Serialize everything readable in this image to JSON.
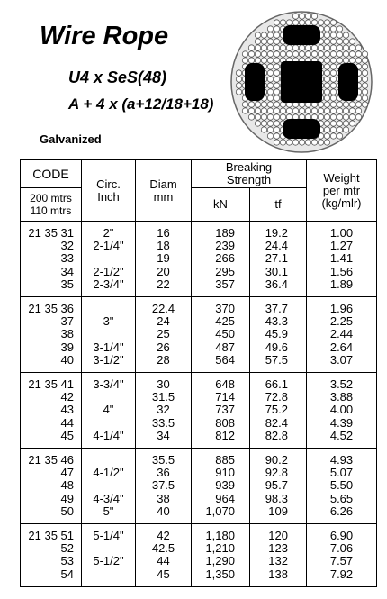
{
  "header": {
    "title": "Wire Rope",
    "subtitle": "U4 x SeS(48)",
    "construction": "A + 4 x (a+12/18+18)",
    "finish": "Galvanized"
  },
  "table": {
    "columns": {
      "code": "CODE",
      "code_lengths": [
        "200 mtrs",
        "110 mtrs"
      ],
      "circ": [
        "Circ.",
        "Inch"
      ],
      "diam": [
        "Diam",
        "mm"
      ],
      "strength": [
        "Breaking",
        "Strength"
      ],
      "kn": "kN",
      "tf": "tf",
      "weight": [
        "Weight",
        "per mtr",
        "(kg/mlr)"
      ]
    },
    "groups": [
      [
        [
          "21 35 31",
          "2\"",
          "16",
          "189",
          "19.2",
          "1.00"
        ],
        [
          "32",
          "2-1/4\"",
          "18",
          "239",
          "24.4",
          "1.27"
        ],
        [
          "33",
          null,
          "19",
          "266",
          "27.1",
          "1.41"
        ],
        [
          "34",
          "2-1/2\"",
          "20",
          "295",
          "30.1",
          "1.56"
        ],
        [
          "35",
          "2-3/4\"",
          "22",
          "357",
          "36.4",
          "1.89"
        ]
      ],
      [
        [
          "21 35 36",
          null,
          "22.4",
          "370",
          "37.7",
          "1.96"
        ],
        [
          "37",
          "3\"",
          "24",
          "425",
          "43.3",
          "2.25"
        ],
        [
          "38",
          null,
          "25",
          "450",
          "45.9",
          "2.44"
        ],
        [
          "39",
          "3-1/4\"",
          "26",
          "487",
          "49.6",
          "2.64"
        ],
        [
          "40",
          "3-1/2\"",
          "28",
          "564",
          "57.5",
          "3.07"
        ]
      ],
      [
        [
          "21 35 41",
          "3-3/4\"",
          "30",
          "648",
          "66.1",
          "3.52"
        ],
        [
          "42",
          null,
          "31.5",
          "714",
          "72.8",
          "3.88"
        ],
        [
          "43",
          "4\"",
          "32",
          "737",
          "75.2",
          "4.00"
        ],
        [
          "44",
          null,
          "33.5",
          "808",
          "82.4",
          "4.39"
        ],
        [
          "45",
          "4-1/4\"",
          "34",
          "812",
          "82.8",
          "4.52"
        ]
      ],
      [
        [
          "21 35 46",
          null,
          "35.5",
          "885",
          "90.2",
          "4.93"
        ],
        [
          "47",
          "4-1/2\"",
          "36",
          "910",
          "92.8",
          "5.07"
        ],
        [
          "48",
          null,
          "37.5",
          "939",
          "95.7",
          "5.50"
        ],
        [
          "49",
          "4-3/4\"",
          "38",
          "964",
          "98.3",
          "5.65"
        ],
        [
          "50",
          "5\"",
          "40",
          "1,070",
          "109",
          "6.26"
        ]
      ],
      [
        [
          "21 35 51",
          "5-1/4\"",
          "42",
          "1,180",
          "120",
          "6.90"
        ],
        [
          "52",
          null,
          "42.5",
          "1,210",
          "123",
          "7.06"
        ],
        [
          "53",
          "5-1/2\"",
          "44",
          "1,290",
          "132",
          "7.57"
        ],
        [
          "54",
          null,
          "45",
          "1,350",
          "138",
          "7.92"
        ]
      ]
    ]
  }
}
